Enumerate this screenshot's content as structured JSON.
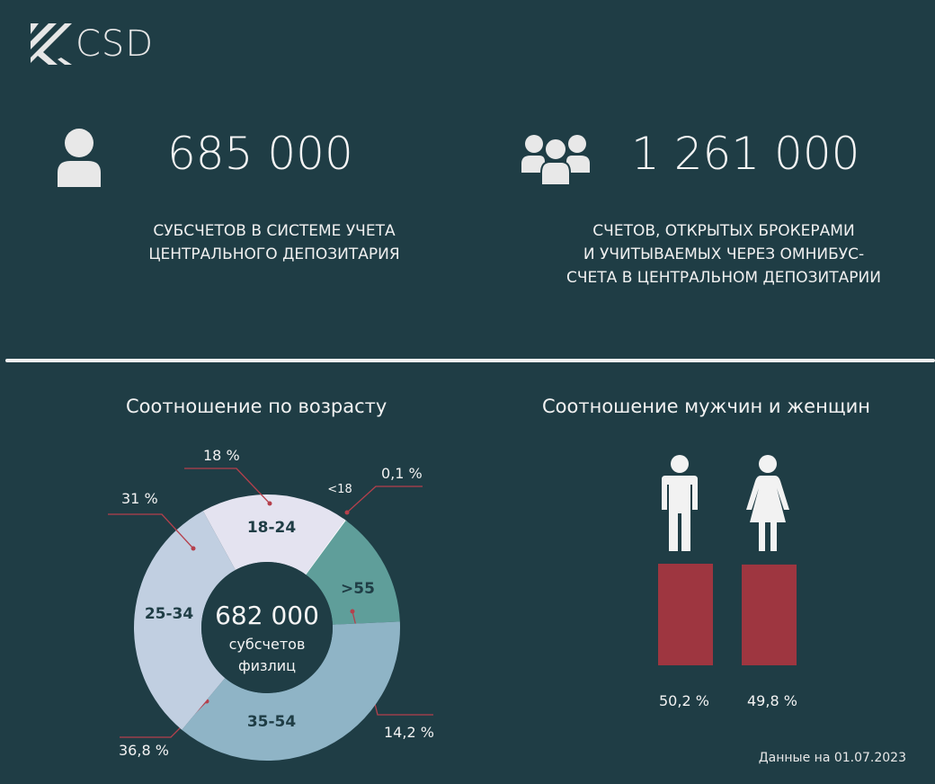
{
  "logo": {
    "text": "CSD"
  },
  "stats": [
    {
      "icon": "person-icon",
      "value": "685 000",
      "label_lines": [
        "СУБСЧЕТОВ В СИСТЕМЕ УЧЕТА",
        "ЦЕНТРАЛЬНОГО ДЕПОЗИТАРИЯ"
      ]
    },
    {
      "icon": "group-icon",
      "value": "1 261 000",
      "label_lines": [
        "СЧЕТОВ, ОТКРЫТЫХ БРОКЕРАМИ",
        "И УЧИТЫВАЕМЫХ ЧЕРЕЗ ОМНИБУС-",
        "СЧЕТА В ЦЕНТРАЛЬНОМ ДЕПОЗИТАРИИ"
      ]
    }
  ],
  "footer": "Данные на 01.07.2023",
  "chart_data": [
    {
      "type": "pie",
      "variant": "donut",
      "title": "Соотношение по возрасту",
      "center": {
        "value": "682 000",
        "line1": "субсчетов",
        "line2": "физлиц"
      },
      "slices": [
        {
          "label": "<18",
          "value": 0.1,
          "value_label": "0,1 %",
          "color": "#ffffff"
        },
        {
          "label": ">55",
          "value": 14.2,
          "value_label": "14,2 %",
          "color": "#5f9e9a"
        },
        {
          "label": "35-54",
          "value": 36.8,
          "value_label": "36,8 %",
          "color": "#8fb4c6"
        },
        {
          "label": "25-34",
          "value": 31,
          "value_label": "31 %",
          "color": "#c1cfe1"
        },
        {
          "label": "18-24",
          "value": 18,
          "value_label": "18 %",
          "color": "#e4e3f0"
        }
      ],
      "leader_color": "#b5404c"
    },
    {
      "type": "bar",
      "title": "Соотношение мужчин и женщин",
      "categories": [
        "Мужчины",
        "Женщины"
      ],
      "icons": [
        "male-icon",
        "female-icon"
      ],
      "values": [
        50.2,
        49.8
      ],
      "value_labels": [
        "50,2 %",
        "49,8 %"
      ],
      "color": "#9e3640",
      "ylim": [
        0,
        50.2
      ]
    }
  ]
}
